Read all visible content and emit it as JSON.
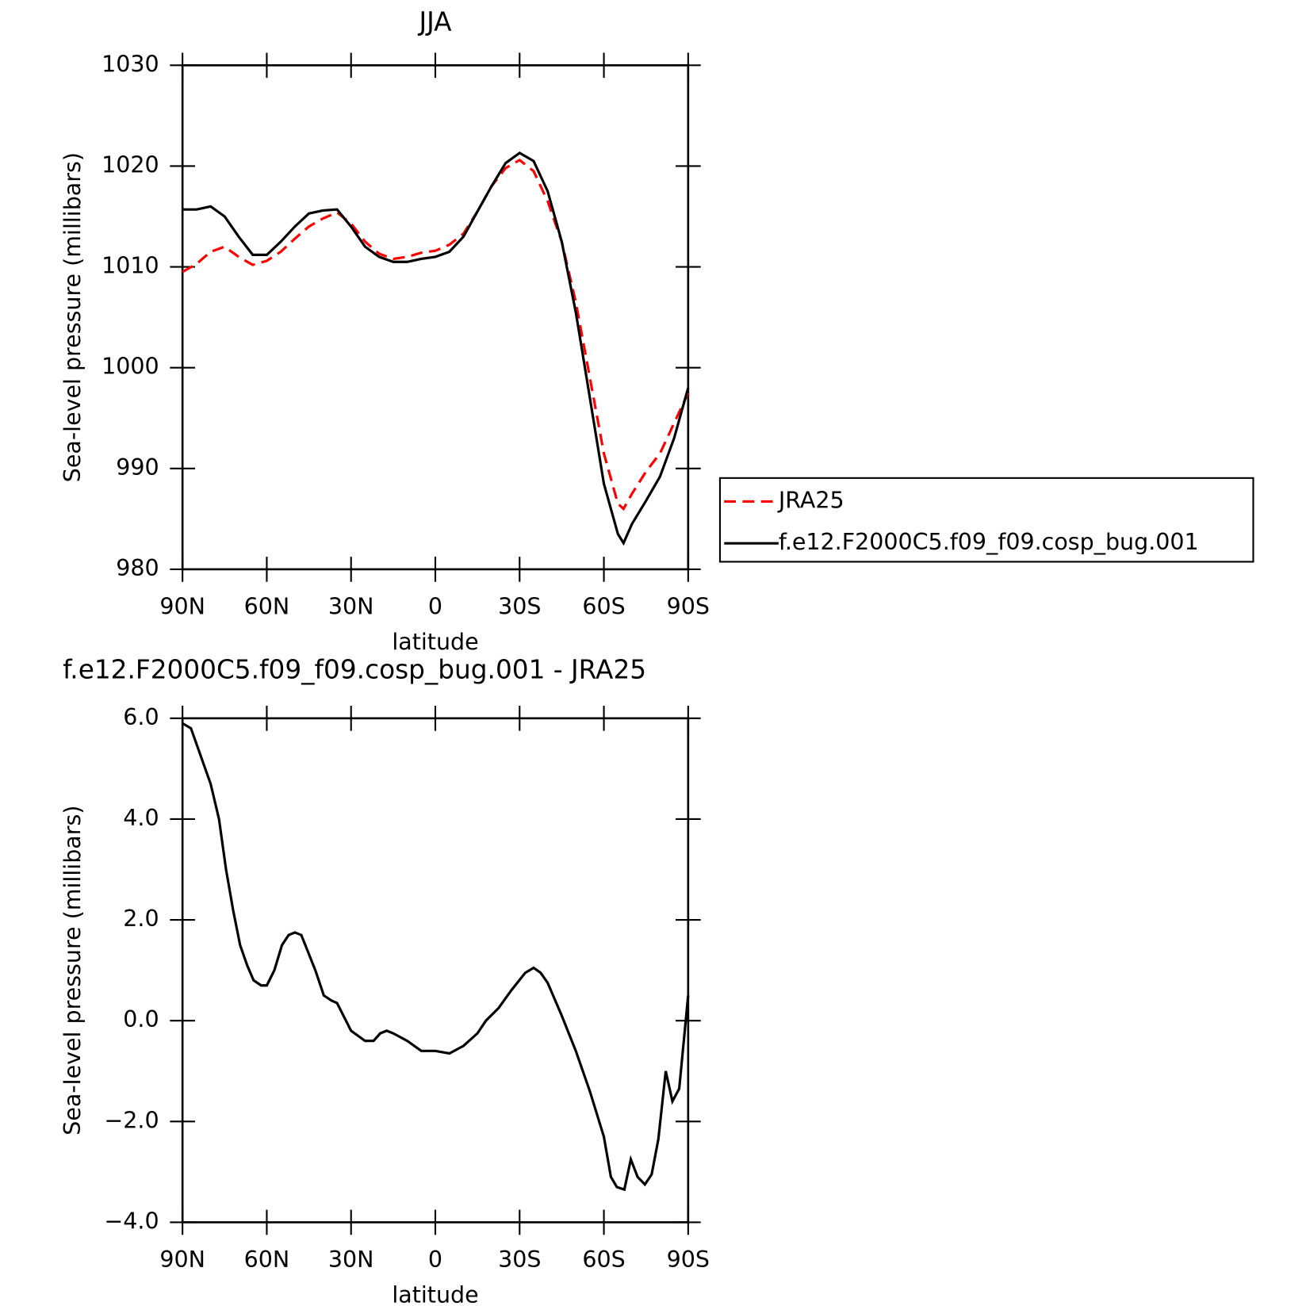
{
  "chart_data": [
    {
      "type": "line",
      "title": "JJA",
      "x_label": "latitude",
      "y_label": "Sea-level pressure (millibars)",
      "x": [
        90,
        85,
        80,
        75,
        70,
        65,
        60,
        55,
        50,
        45,
        40,
        35,
        30,
        25,
        20,
        15,
        10,
        5,
        0,
        -5,
        -10,
        -15,
        -20,
        -25,
        -30,
        -35,
        -40,
        -45,
        -50,
        -55,
        -60,
        -65,
        -67,
        -70,
        -75,
        -80,
        -85,
        -90
      ],
      "series": [
        {
          "name": "JRA25",
          "color": "#ff0000",
          "style": "dashed",
          "values": [
            1009.5,
            1010.3,
            1011.5,
            1012.0,
            1011.0,
            1010.2,
            1010.6,
            1011.5,
            1012.8,
            1014.0,
            1014.8,
            1015.4,
            1014.3,
            1012.5,
            1011.3,
            1010.8,
            1011.0,
            1011.4,
            1011.6,
            1012.2,
            1013.3,
            1015.5,
            1018.0,
            1019.8,
            1020.6,
            1019.5,
            1016.5,
            1012.5,
            1006.5,
            999.0,
            991.5,
            986.5,
            986.0,
            987.5,
            989.7,
            991.5,
            994.5,
            997.5
          ]
        },
        {
          "name": "f.e12.F2000C5.f09_f09.cosp_bug.001",
          "color": "#000000",
          "style": "solid",
          "values": [
            1015.7,
            1015.7,
            1016.0,
            1015.0,
            1013.0,
            1011.2,
            1011.2,
            1012.5,
            1014.0,
            1015.3,
            1015.6,
            1015.7,
            1014.0,
            1012.0,
            1011.0,
            1010.5,
            1010.5,
            1010.8,
            1011.0,
            1011.5,
            1013.0,
            1015.5,
            1018.0,
            1020.3,
            1021.3,
            1020.5,
            1017.5,
            1012.5,
            1005.5,
            997.0,
            988.5,
            983.5,
            982.6,
            984.5,
            986.8,
            989.2,
            993.0,
            998.0
          ]
        }
      ],
      "xlim": [
        90,
        -90
      ],
      "xticks": [
        {
          "value": 90,
          "label": "90N"
        },
        {
          "value": 60,
          "label": "60N"
        },
        {
          "value": 30,
          "label": "30N"
        },
        0,
        {
          "value": -30,
          "label": "30S"
        },
        {
          "value": -60,
          "label": "60S"
        },
        {
          "value": -90,
          "label": "90S"
        }
      ],
      "ylim": [
        980,
        1030
      ],
      "yticks": [
        980,
        990,
        1000,
        1010,
        1020,
        1030
      ],
      "legend": "right"
    },
    {
      "type": "line",
      "title": "f.e12.F2000C5.f09_f09.cosp_bug.001 - JRA25",
      "x_label": "latitude",
      "y_label": "Sea-level pressure (millibars)",
      "x": [
        90,
        87,
        80,
        77,
        74.5,
        72,
        69.5,
        67,
        64.7,
        62,
        60,
        57.3,
        54.6,
        52.2,
        50,
        47.7,
        42.7,
        39.7,
        37,
        35,
        30,
        25,
        22,
        19.6,
        17.3,
        15,
        10,
        5,
        0,
        -5,
        -10,
        -15,
        -18,
        -22.5,
        -27,
        -32,
        -35,
        -37.5,
        -40,
        -45,
        -50,
        -55,
        -60,
        -62.5,
        -64.6,
        -67.3,
        -69.6,
        -72,
        -74.6,
        -77,
        -79.4,
        -82,
        -84.4,
        -86.8,
        -90
      ],
      "values": [
        5.9,
        5.8,
        4.7,
        4.0,
        3.0,
        2.2,
        1.5,
        1.1,
        0.8,
        0.7,
        0.7,
        1.0,
        1.5,
        1.7,
        1.75,
        1.7,
        1.0,
        0.5,
        0.4,
        0.35,
        -0.2,
        -0.4,
        -0.4,
        -0.25,
        -0.2,
        -0.25,
        -0.4,
        -0.6,
        -0.6,
        -0.65,
        -0.5,
        -0.25,
        0.0,
        0.25,
        0.6,
        0.95,
        1.05,
        0.95,
        0.75,
        0.1,
        -0.6,
        -1.4,
        -2.3,
        -3.1,
        -3.3,
        -3.35,
        -2.75,
        -3.1,
        -3.25,
        -3.05,
        -2.35,
        -1.0,
        -1.6,
        -1.35,
        0.5
      ],
      "color": "#000000",
      "xlim": [
        90,
        -90
      ],
      "xticks": [
        {
          "value": 90,
          "label": "90N"
        },
        {
          "value": 60,
          "label": "60N"
        },
        {
          "value": 30,
          "label": "30N"
        },
        0,
        {
          "value": -30,
          "label": "30S"
        },
        {
          "value": -60,
          "label": "60S"
        },
        {
          "value": -90,
          "label": "90S"
        }
      ],
      "ylim": [
        -4,
        6
      ],
      "yticks": [
        {
          "value": -4,
          "label": "−4.0"
        },
        {
          "value": -2,
          "label": "−2.0"
        },
        {
          "value": 0,
          "label": "0.0"
        },
        {
          "value": 2,
          "label": "2.0"
        },
        {
          "value": 4,
          "label": "4.0"
        },
        {
          "value": 6,
          "label": "6.0"
        }
      ]
    }
  ]
}
